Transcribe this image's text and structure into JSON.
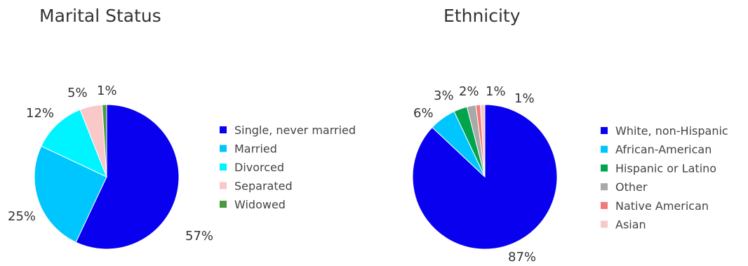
{
  "chart_data": [
    {
      "type": "pie",
      "title": "Marital Status",
      "slices": [
        {
          "label": "Single, never married",
          "value": 57,
          "display": "57%",
          "color": "#0A00F0"
        },
        {
          "label": "Married",
          "value": 25,
          "display": "25%",
          "color": "#00C6FF"
        },
        {
          "label": "Divorced",
          "value": 12,
          "display": "12%",
          "color": "#00F4FF"
        },
        {
          "label": "Separated",
          "value": 5,
          "display": "5%",
          "color": "#F9C8C8"
        },
        {
          "label": "Widowed",
          "value": 1,
          "display": "1%",
          "color": "#4A9A42"
        }
      ],
      "legend_placement": "right"
    },
    {
      "type": "pie",
      "title": "Ethnicity",
      "slices": [
        {
          "label": "White, non-Hispanic",
          "value": 87,
          "display": "87%",
          "color": "#0A00F0"
        },
        {
          "label": "African-American",
          "value": 6,
          "display": "6%",
          "color": "#00C6FF"
        },
        {
          "label": "Hispanic or Latino",
          "value": 3,
          "display": "3%",
          "color": "#00A44A"
        },
        {
          "label": "Other",
          "value": 2,
          "display": "2%",
          "color": "#A9A9A9"
        },
        {
          "label": "Native American",
          "value": 1,
          "display": "1%",
          "color": "#F07A7A"
        },
        {
          "label": "Asian",
          "value": 1,
          "display": "1%",
          "color": "#F9C8C8"
        }
      ],
      "legend_placement": "right"
    }
  ]
}
